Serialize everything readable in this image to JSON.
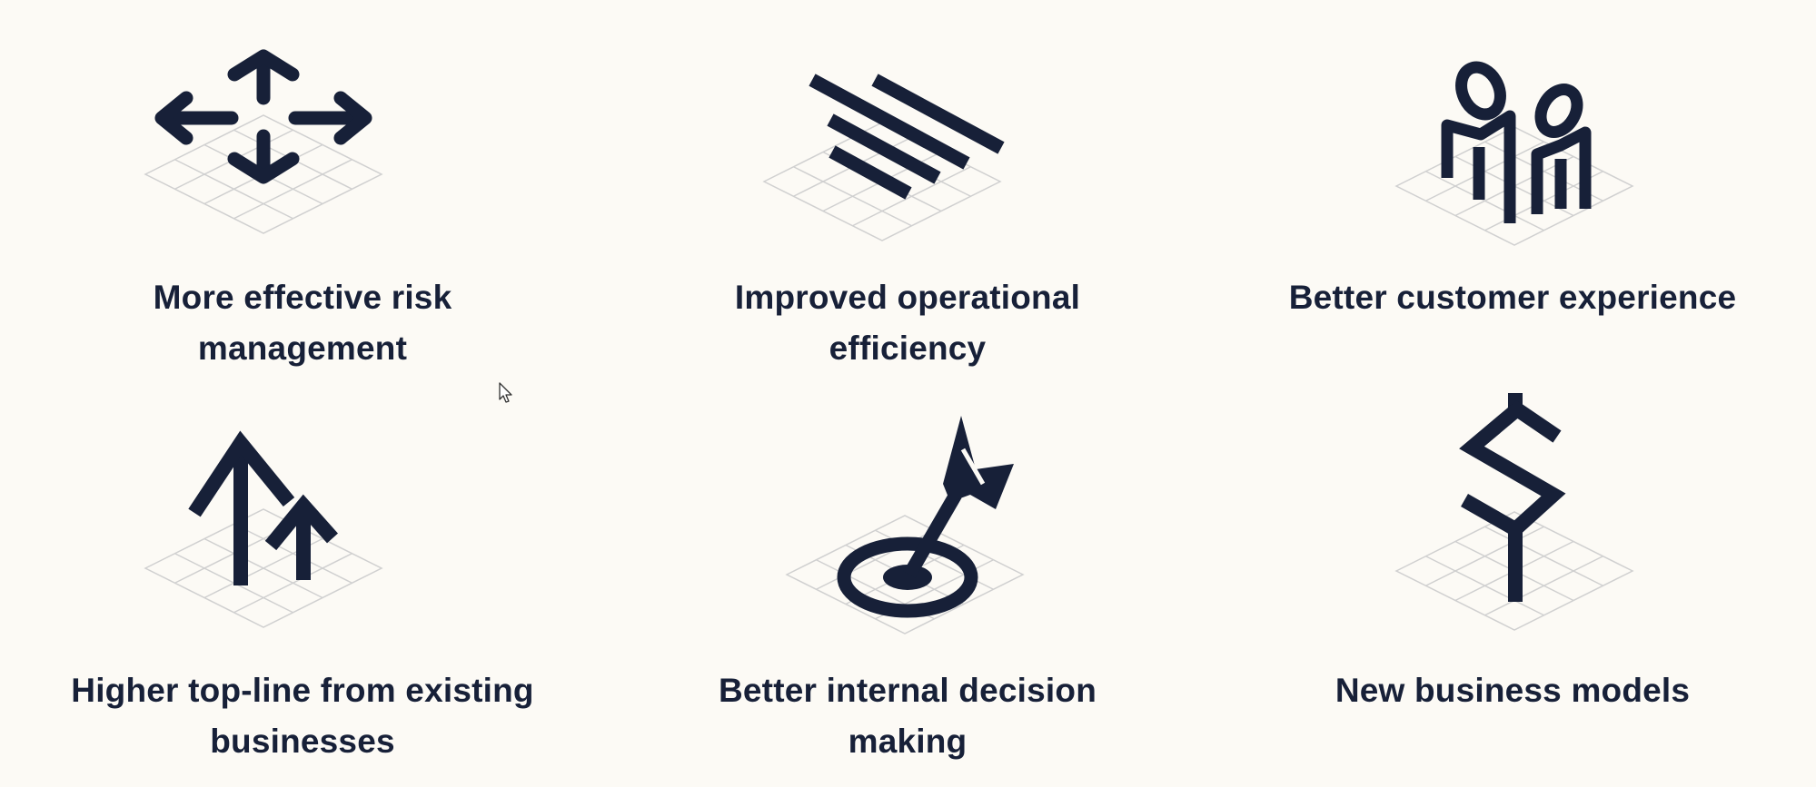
{
  "benefits": [
    {
      "icon": "expand-arrows-icon",
      "line1": "More effective risk",
      "line2": "management"
    },
    {
      "icon": "diagonal-lines-icon",
      "line1": "Improved operational",
      "line2": "efficiency"
    },
    {
      "icon": "people-icon",
      "line1": "Better customer experience",
      "line2": ""
    },
    {
      "icon": "up-arrows-icon",
      "line1": "Higher top-line from existing",
      "line2": "businesses"
    },
    {
      "icon": "target-arrow-icon",
      "line1": "Better internal decision",
      "line2": "making"
    },
    {
      "icon": "dollar-icon",
      "line1": "New business models",
      "line2": ""
    }
  ],
  "colors": {
    "background": "#fcfaf5",
    "icon": "#172038",
    "grid": "#cccccc",
    "text": "#172038"
  },
  "cursor_icon": "mouse-pointer-icon"
}
